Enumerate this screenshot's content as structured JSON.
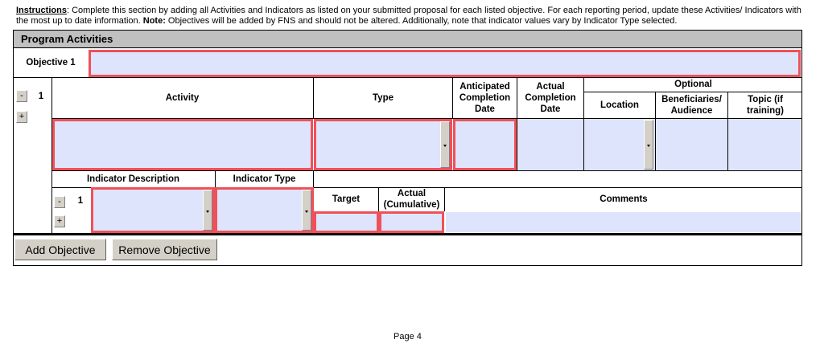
{
  "instructions": {
    "label": "Instructions",
    "text1": ": Complete this section by adding all Activities and Indicators as listed on your submitted proposal for each listed objective. For each reporting period, update these Activities/ Indicators with the most up to date information. ",
    "note_label": "Note:",
    "text2": " Objectives will be added by FNS and should not be altered. Additionally, note that indicator values vary by Indicator Type selected."
  },
  "section_title": "Program Activities",
  "objective": {
    "label": "Objective 1",
    "value": ""
  },
  "activity": {
    "number": "1",
    "remove_label": "-",
    "add_label": "+",
    "headers": {
      "activity": "Activity",
      "type": "Type",
      "anticipated": "Anticipated Completion Date",
      "actual": "Actual Completion Date",
      "optional": "Optional",
      "location": "Location",
      "beneficiaries": "Beneficiaries/ Audience",
      "topic": "Topic (if training)"
    }
  },
  "indicator": {
    "number": "1",
    "remove_label": "-",
    "add_label": "+",
    "headers": {
      "description": "Indicator Description",
      "type": "Indicator Type",
      "target": "Target",
      "actual": "Actual (Cumulative)",
      "comments": "Comments"
    }
  },
  "buttons": {
    "add_objective": "Add Objective",
    "remove_objective": "Remove Objective"
  },
  "footer": {
    "page": "Page 4"
  },
  "colors": {
    "required_border": "#f0505a",
    "field_fill": "#dde4fc",
    "header_fill": "#c0c0c0"
  }
}
